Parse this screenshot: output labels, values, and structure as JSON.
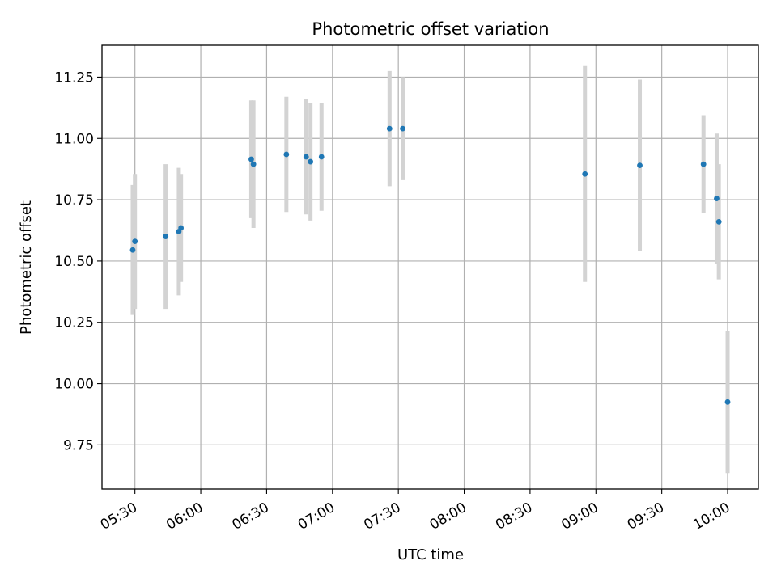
{
  "chart_data": {
    "type": "scatter",
    "title": "Photometric offset variation",
    "xlabel": "UTC time",
    "ylabel": "Photometric offset",
    "x_unit": "UTC time (HH:MM)",
    "xlim": [
      "05:15",
      "10:14"
    ],
    "ylim": [
      9.57,
      11.38
    ],
    "xticks": [
      "05:30",
      "06:00",
      "06:30",
      "07:00",
      "07:30",
      "08:00",
      "08:30",
      "09:00",
      "09:30",
      "10:00"
    ],
    "yticks": [
      "9.75",
      "10.00",
      "10.25",
      "10.50",
      "10.75",
      "11.00",
      "11.25"
    ],
    "grid": true,
    "marker_color": "#1f77b4",
    "errorbar_color": "#d3d3d3",
    "points": [
      {
        "x": "05:29",
        "y": 10.545,
        "err": 0.265
      },
      {
        "x": "05:30",
        "y": 10.58,
        "err": 0.275
      },
      {
        "x": "05:44",
        "y": 10.6,
        "err": 0.295
      },
      {
        "x": "05:50",
        "y": 10.62,
        "err": 0.26
      },
      {
        "x": "05:51",
        "y": 10.635,
        "err": 0.22
      },
      {
        "x": "06:23",
        "y": 10.915,
        "err": 0.24
      },
      {
        "x": "06:24",
        "y": 10.895,
        "err": 0.26
      },
      {
        "x": "06:39",
        "y": 10.935,
        "err": 0.235
      },
      {
        "x": "06:48",
        "y": 10.925,
        "err": 0.235
      },
      {
        "x": "06:50",
        "y": 10.905,
        "err": 0.24
      },
      {
        "x": "06:55",
        "y": 10.925,
        "err": 0.22
      },
      {
        "x": "07:26",
        "y": 11.04,
        "err": 0.235
      },
      {
        "x": "07:32",
        "y": 11.04,
        "err": 0.21
      },
      {
        "x": "08:55",
        "y": 10.855,
        "err": 0.44
      },
      {
        "x": "09:20",
        "y": 10.89,
        "err": 0.35
      },
      {
        "x": "09:49",
        "y": 10.895,
        "err": 0.2
      },
      {
        "x": "09:55",
        "y": 10.755,
        "err": 0.265
      },
      {
        "x": "09:56",
        "y": 10.66,
        "err": 0.235
      },
      {
        "x": "10:00",
        "y": 9.925,
        "err": 0.29
      }
    ]
  }
}
